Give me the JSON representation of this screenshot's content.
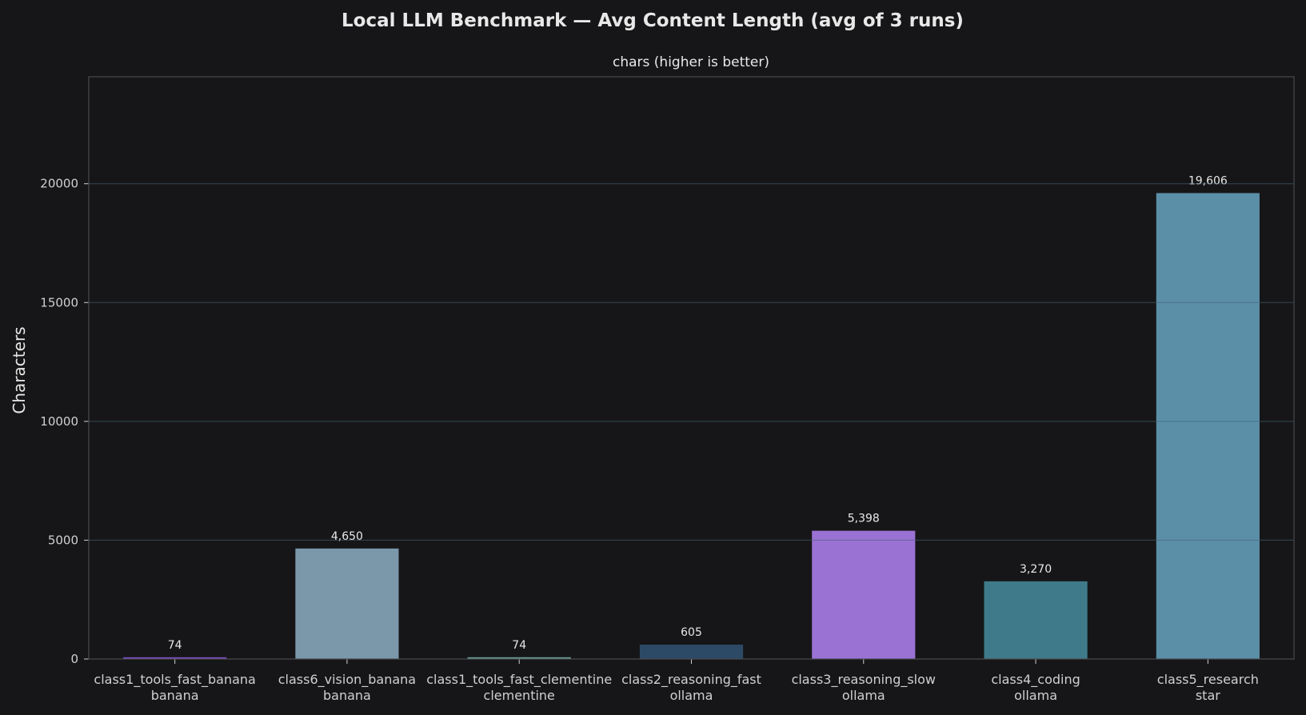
{
  "title": "Local LLM Benchmark — Avg Content Length  (avg of 3 runs)",
  "subtitle": "chars (higher is better)",
  "colors": {
    "background": "#161618",
    "panel": "#161618",
    "frame": "#4a4a4e",
    "grid": "#26262a",
    "text": "#e8e8e8",
    "tick": "#d0d0d0"
  },
  "chart_data": {
    "type": "bar",
    "title": "Local LLM Benchmark — Avg Content Length  (avg of 3 runs)",
    "subtitle": "chars (higher is better)",
    "xlabel": "",
    "ylabel": "Characters",
    "ylim": [
      0,
      24500
    ],
    "yticks": [
      0,
      5000,
      10000,
      15000,
      20000
    ],
    "grid": true,
    "categories": [
      [
        "class1_tools_fast_banana",
        "banana"
      ],
      [
        "class6_vision_banana",
        "banana"
      ],
      [
        "class1_tools_fast_clementine",
        "clementine"
      ],
      [
        "class2_reasoning_fast",
        "ollama"
      ],
      [
        "class3_reasoning_slow",
        "ollama"
      ],
      [
        "class4_coding",
        "ollama"
      ],
      [
        "class5_research",
        "star"
      ]
    ],
    "values": [
      74,
      4650,
      74,
      605,
      5398,
      3270,
      19606
    ],
    "labels": [
      "74",
      "4,650",
      "74",
      "605",
      "5,398",
      "3,270",
      "19,606"
    ],
    "bar_colors": [
      "#7c4fc4",
      "#7b98aa",
      "#6f9f9a",
      "#2c4a65",
      "#9a72d3",
      "#3f7a8a",
      "#5b8fa8"
    ]
  }
}
